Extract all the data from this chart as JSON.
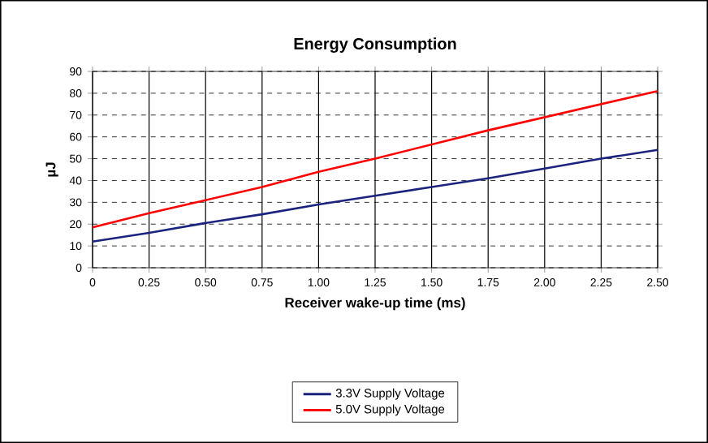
{
  "chart_data": {
    "type": "line",
    "title": "Energy Consumption",
    "xlabel": "Receiver wake-up time (ms)",
    "ylabel": "µJ",
    "x": [
      0,
      0.25,
      0.5,
      0.75,
      1.0,
      1.25,
      1.5,
      1.75,
      2.0,
      2.25,
      2.5
    ],
    "series": [
      {
        "name": "3.3V Supply Voltage",
        "color": "#1a237e",
        "values": [
          12,
          16,
          20.5,
          24.5,
          29,
          33,
          37,
          41,
          45.5,
          50,
          54
        ]
      },
      {
        "name": "5.0V Supply Voltage",
        "color": "#ff0000",
        "values": [
          18.5,
          25,
          31,
          37,
          44,
          50,
          56.5,
          63,
          69,
          75,
          81
        ]
      }
    ],
    "xlim": [
      0,
      2.5
    ],
    "xticks": [
      0,
      0.25,
      {
        "value": 0.5,
        "label": "0.50"
      },
      {
        "value": 0.75,
        "label": "0.75"
      },
      {
        "value": 1.0,
        "label": "1.00"
      },
      {
        "value": 1.25,
        "label": "1.25"
      },
      {
        "value": 1.5,
        "label": "1.50"
      },
      {
        "value": 1.75,
        "label": "1.75"
      },
      {
        "value": 2.0,
        "label": "2.00"
      },
      {
        "value": 2.25,
        "label": "2.25"
      },
      {
        "value": 2.5,
        "label": "2.50"
      }
    ],
    "ylim": [
      0,
      90
    ],
    "yticks": [
      0,
      10,
      20,
      30,
      40,
      50,
      60,
      70,
      80,
      90
    ],
    "grid": true,
    "legend": "bottom",
    "marker": "none",
    "line_style": "solid"
  }
}
